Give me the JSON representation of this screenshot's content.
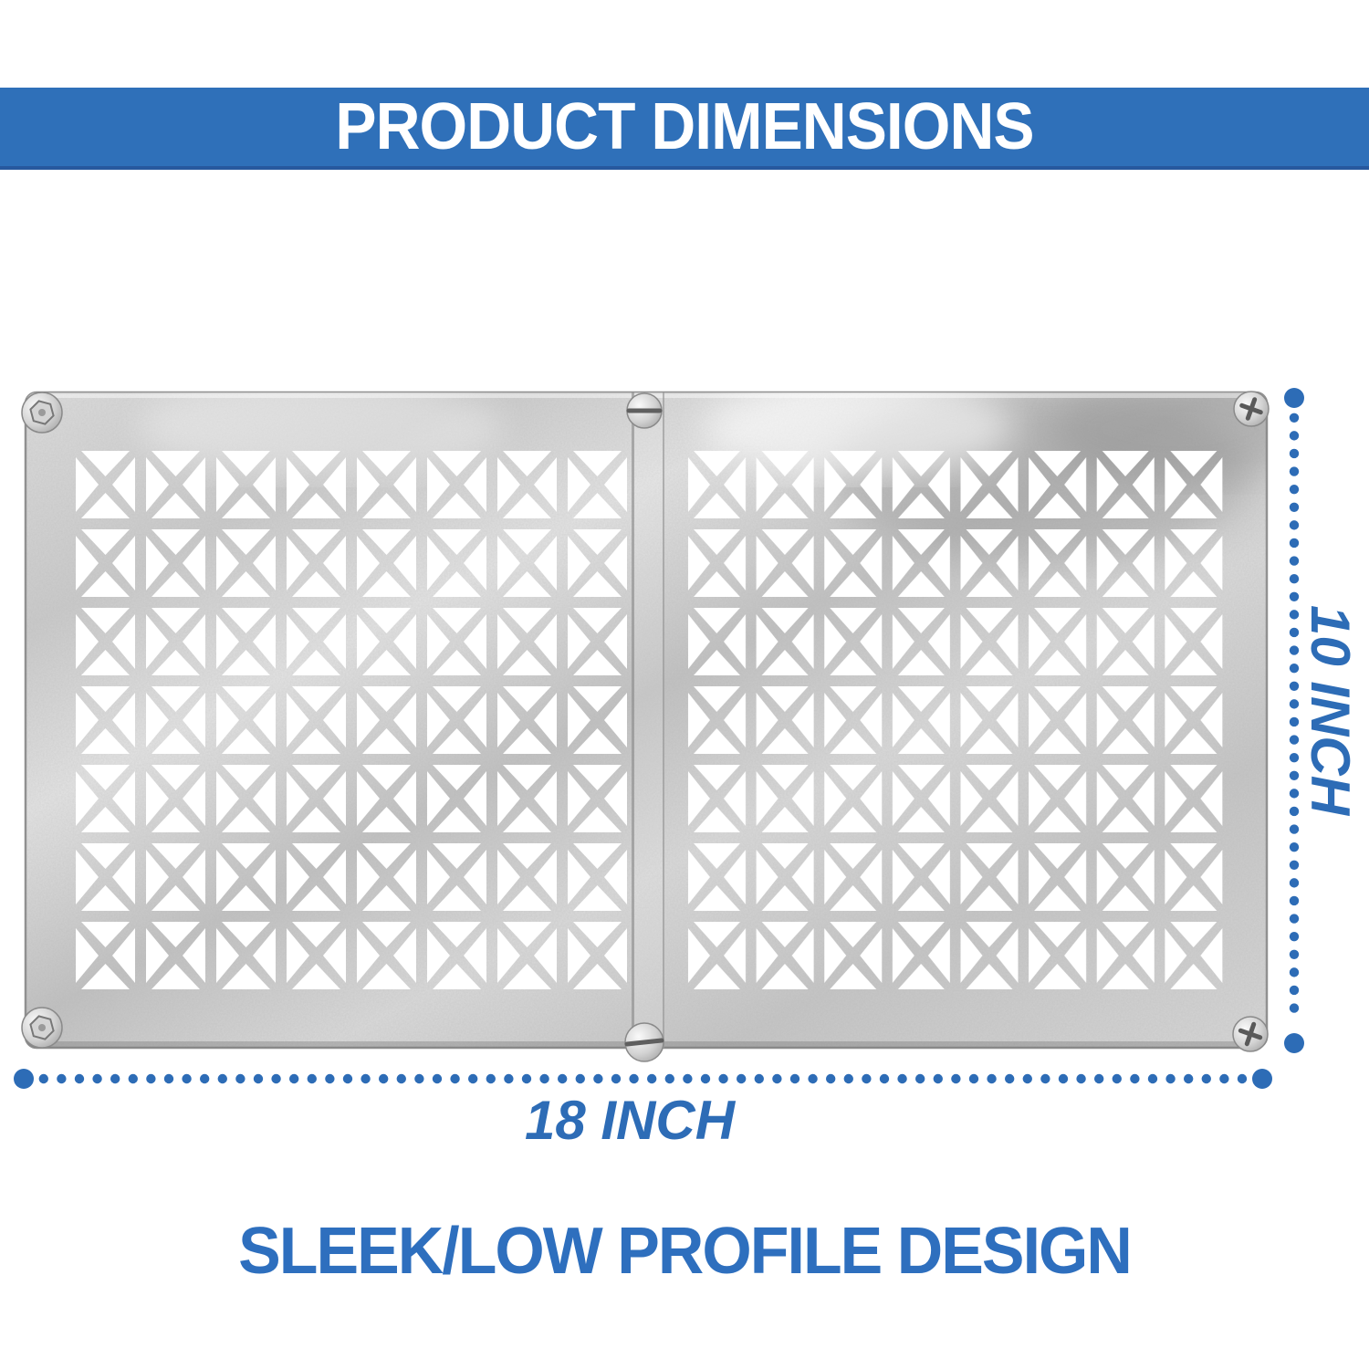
{
  "colors": {
    "background": "#ffffff",
    "banner_background": "#2f70b9",
    "banner_border": "#27589e",
    "banner_text": "#ffffff",
    "dimension_blue": "#2d6cb6",
    "heading_blue": "#2e6fbe",
    "metal_light": "#e2e2e2",
    "metal_dark": "#bfbfbf"
  },
  "banner": {
    "title": "PRODUCT DIMENSIONS"
  },
  "product": {
    "description": "galvanized metal vent cover, two panels with X-pattern grille and screws",
    "panels": 2,
    "columns_per_panel": 8,
    "rows": 7,
    "screw_count": 6
  },
  "dimensions": {
    "height_label": "10 INCH",
    "width_label": "18 INCH"
  },
  "footer": {
    "heading": "SLEEK/LOW PROFILE DESIGN"
  }
}
